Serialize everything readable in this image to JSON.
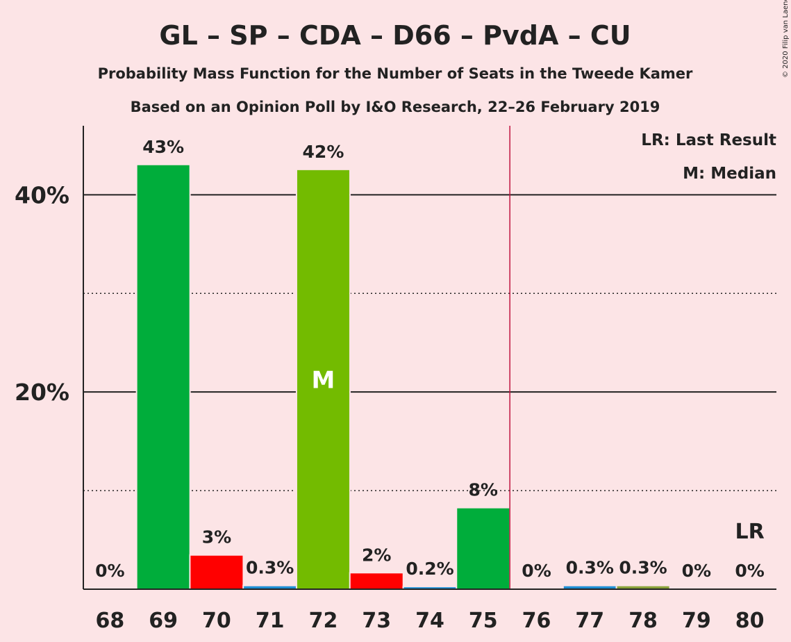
{
  "title": "GL – SP – CDA – D66 – PvdA – CU",
  "subtitle_1": "Probability Mass Function for the Number of Seats in the Tweede Kamer",
  "subtitle_2": "Based on an Opinion Poll by I&O Research, 22–26 February 2019",
  "copyright": "© 2020 Filip van Laenen",
  "legend": {
    "last_result": "LR: Last Result",
    "median": "M: Median"
  },
  "colors": {
    "background": "#fce4e6",
    "green": "#00ad3b",
    "light_green": "#73bb00",
    "red": "#ff0000",
    "blue": "#1f8fd4",
    "olive": "#8aa23a",
    "last_result_line": "#c0133f"
  },
  "chart_data": {
    "type": "bar",
    "categories": [
      "68",
      "69",
      "70",
      "71",
      "72",
      "73",
      "74",
      "75",
      "76",
      "77",
      "78",
      "79",
      "80"
    ],
    "values": [
      0,
      43,
      3.4,
      0.3,
      42.5,
      1.6,
      0.2,
      8.2,
      0,
      0.3,
      0.3,
      0,
      0
    ],
    "value_labels": [
      "0%",
      "43%",
      "3%",
      "0.3%",
      "42%",
      "2%",
      "0.2%",
      "8%",
      "0%",
      "0.3%",
      "0.3%",
      "0%",
      "0%"
    ],
    "bar_colors": [
      "#00ad3b",
      "#00ad3b",
      "#ff0000",
      "#1f8fd4",
      "#73bb00",
      "#ff0000",
      "#1f8fd4",
      "#00ad3b",
      "#00ad3b",
      "#1f8fd4",
      "#8aa23a",
      "#00ad3b",
      "#00ad3b"
    ],
    "ylim": [
      0,
      47
    ],
    "yticks": [
      {
        "value": 20,
        "label": "20%"
      },
      {
        "value": 40,
        "label": "40%"
      }
    ],
    "minor_gridlines": [
      10,
      30
    ],
    "median_category": "72",
    "median_label": "M",
    "last_result_category": "80",
    "last_result_label": "LR",
    "majority_line_after": "75",
    "legend_position": "top-right",
    "title": "GL – SP – CDA – D66 – PvdA – CU"
  }
}
